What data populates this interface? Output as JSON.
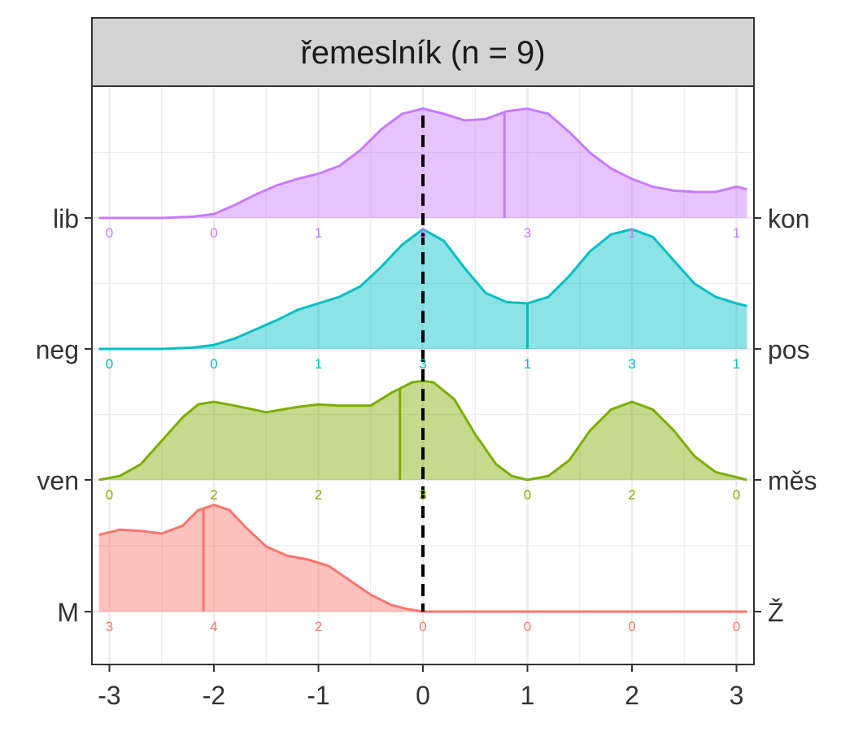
{
  "chart_data": {
    "type": "ridgeline-density",
    "facet_title": "řemeslník (n = 9)",
    "xlim": [
      -3.1,
      3.1
    ],
    "x_ticks": [
      -3,
      -2,
      -1,
      0,
      1,
      2,
      3
    ],
    "x_tick_labels": [
      "-3",
      "-2",
      "-1",
      "0",
      "1",
      "2",
      "3"
    ],
    "grid": true,
    "reference_line_x": 0,
    "count_positions": [
      -3,
      -2,
      -1,
      0,
      1,
      2,
      3
    ],
    "series": [
      {
        "left_label": "M",
        "right_label": "Ž",
        "color": "#F8766D",
        "counts": [
          3,
          4,
          2,
          0,
          0,
          0,
          0
        ],
        "mean": -2.1,
        "density": [
          [
            -3.1,
            0.59
          ],
          [
            -2.9,
            0.63
          ],
          [
            -2.7,
            0.62
          ],
          [
            -2.5,
            0.6
          ],
          [
            -2.3,
            0.66
          ],
          [
            -2.15,
            0.78
          ],
          [
            -2.0,
            0.82
          ],
          [
            -1.85,
            0.78
          ],
          [
            -1.7,
            0.65
          ],
          [
            -1.5,
            0.5
          ],
          [
            -1.3,
            0.43
          ],
          [
            -1.1,
            0.4
          ],
          [
            -0.9,
            0.35
          ],
          [
            -0.7,
            0.24
          ],
          [
            -0.5,
            0.13
          ],
          [
            -0.3,
            0.05
          ],
          [
            -0.15,
            0.02
          ],
          [
            0.0,
            0.0
          ],
          [
            3.1,
            0.0
          ]
        ]
      },
      {
        "left_label": "ven",
        "right_label": "měs",
        "color": "#7CAE00",
        "counts": [
          0,
          2,
          2,
          3,
          0,
          2,
          0
        ],
        "mean": -0.22,
        "density": [
          [
            -3.1,
            0.0
          ],
          [
            -2.9,
            0.03
          ],
          [
            -2.7,
            0.12
          ],
          [
            -2.5,
            0.3
          ],
          [
            -2.3,
            0.48
          ],
          [
            -2.15,
            0.58
          ],
          [
            -2.0,
            0.6
          ],
          [
            -1.8,
            0.57
          ],
          [
            -1.5,
            0.52
          ],
          [
            -1.2,
            0.56
          ],
          [
            -1.0,
            0.58
          ],
          [
            -0.8,
            0.57
          ],
          [
            -0.5,
            0.57
          ],
          [
            -0.3,
            0.67
          ],
          [
            -0.1,
            0.75
          ],
          [
            0.0,
            0.76
          ],
          [
            0.1,
            0.75
          ],
          [
            0.3,
            0.62
          ],
          [
            0.5,
            0.35
          ],
          [
            0.7,
            0.12
          ],
          [
            0.85,
            0.03
          ],
          [
            1.0,
            0.0
          ],
          [
            1.2,
            0.03
          ],
          [
            1.4,
            0.15
          ],
          [
            1.6,
            0.38
          ],
          [
            1.8,
            0.54
          ],
          [
            2.0,
            0.6
          ],
          [
            2.2,
            0.54
          ],
          [
            2.4,
            0.38
          ],
          [
            2.6,
            0.18
          ],
          [
            2.8,
            0.06
          ],
          [
            3.1,
            0.0
          ]
        ]
      },
      {
        "left_label": "neg",
        "right_label": "pos",
        "color": "#00BFC4",
        "counts": [
          0,
          0,
          1,
          3,
          1,
          3,
          1
        ],
        "mean": 1.0,
        "density": [
          [
            -3.1,
            0.0
          ],
          [
            -2.5,
            0.0
          ],
          [
            -2.2,
            0.01
          ],
          [
            -2.0,
            0.03
          ],
          [
            -1.8,
            0.08
          ],
          [
            -1.6,
            0.15
          ],
          [
            -1.4,
            0.22
          ],
          [
            -1.2,
            0.3
          ],
          [
            -1.0,
            0.35
          ],
          [
            -0.8,
            0.4
          ],
          [
            -0.6,
            0.48
          ],
          [
            -0.4,
            0.63
          ],
          [
            -0.2,
            0.8
          ],
          [
            0.0,
            0.92
          ],
          [
            0.2,
            0.83
          ],
          [
            0.4,
            0.62
          ],
          [
            0.6,
            0.43
          ],
          [
            0.8,
            0.36
          ],
          [
            1.0,
            0.35
          ],
          [
            1.2,
            0.4
          ],
          [
            1.4,
            0.56
          ],
          [
            1.6,
            0.75
          ],
          [
            1.8,
            0.88
          ],
          [
            2.0,
            0.92
          ],
          [
            2.2,
            0.86
          ],
          [
            2.4,
            0.68
          ],
          [
            2.6,
            0.5
          ],
          [
            2.8,
            0.4
          ],
          [
            3.0,
            0.35
          ],
          [
            3.1,
            0.33
          ]
        ]
      },
      {
        "left_label": "lib",
        "right_label": "kon",
        "color": "#C77CFF",
        "counts": [
          0,
          0,
          1,
          3,
          3,
          1,
          1
        ],
        "mean": 0.78,
        "density": [
          [
            -3.1,
            0.0
          ],
          [
            -2.5,
            0.0
          ],
          [
            -2.2,
            0.01
          ],
          [
            -2.0,
            0.03
          ],
          [
            -1.8,
            0.1
          ],
          [
            -1.6,
            0.18
          ],
          [
            -1.4,
            0.25
          ],
          [
            -1.2,
            0.3
          ],
          [
            -1.0,
            0.34
          ],
          [
            -0.8,
            0.4
          ],
          [
            -0.6,
            0.52
          ],
          [
            -0.4,
            0.68
          ],
          [
            -0.2,
            0.8
          ],
          [
            0.0,
            0.84
          ],
          [
            0.2,
            0.8
          ],
          [
            0.4,
            0.75
          ],
          [
            0.6,
            0.76
          ],
          [
            0.8,
            0.82
          ],
          [
            1.0,
            0.84
          ],
          [
            1.2,
            0.8
          ],
          [
            1.4,
            0.66
          ],
          [
            1.6,
            0.5
          ],
          [
            1.8,
            0.38
          ],
          [
            2.0,
            0.3
          ],
          [
            2.2,
            0.24
          ],
          [
            2.4,
            0.21
          ],
          [
            2.6,
            0.2
          ],
          [
            2.8,
            0.2
          ],
          [
            3.0,
            0.24
          ],
          [
            3.1,
            0.22
          ]
        ]
      }
    ]
  }
}
